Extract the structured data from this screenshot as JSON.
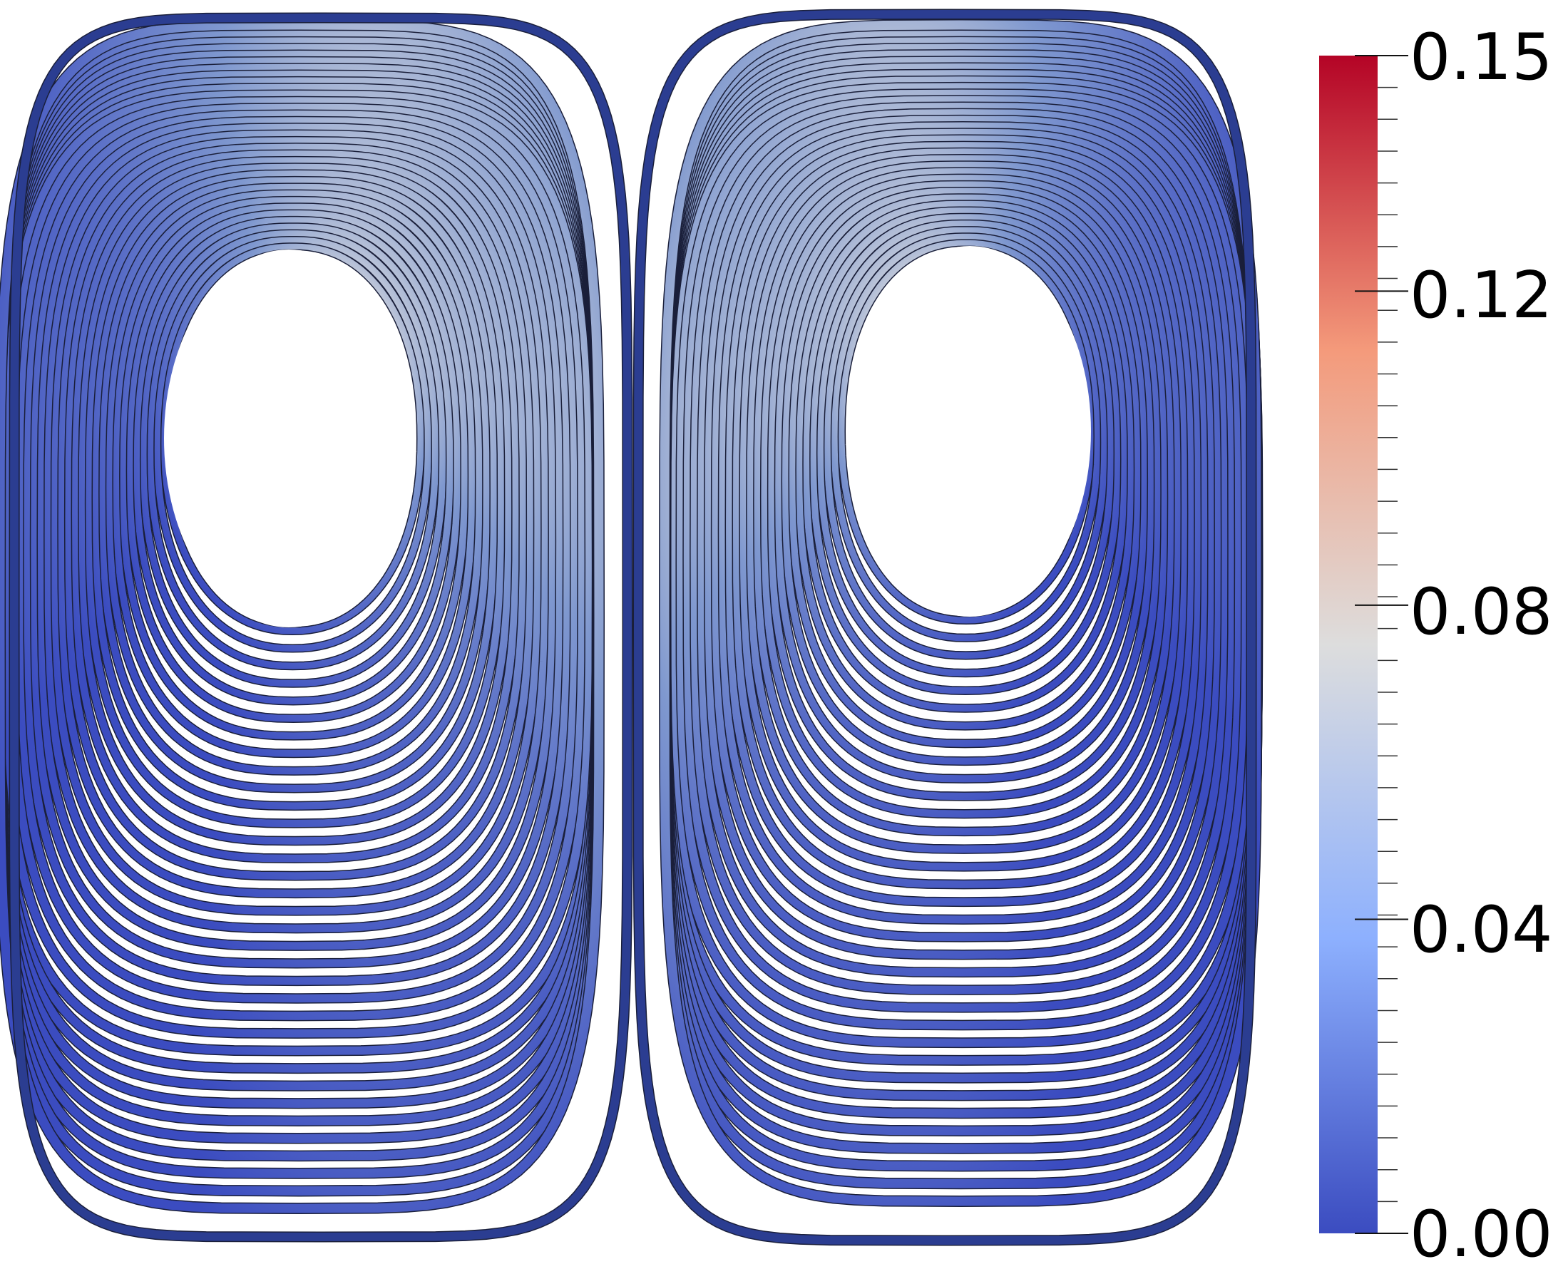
{
  "scene": {
    "type": "streamline-visualization",
    "vortex_count": 2,
    "background": "#ffffff",
    "tube_outline": "#1a1f3a"
  },
  "colorbar": {
    "min": 0.0,
    "max": 0.15,
    "colormap": "cool-to-warm",
    "color_stops": [
      "#3b4cc0",
      "#8db0fe",
      "#dddddd",
      "#f49a7b",
      "#b40426"
    ],
    "tick_labels": [
      "0.15",
      "0.12",
      "0.08",
      "0.04",
      "0.00"
    ],
    "tick_values": [
      0.15,
      0.12,
      0.08,
      0.04,
      0.0
    ],
    "minor_ticks": 37
  }
}
